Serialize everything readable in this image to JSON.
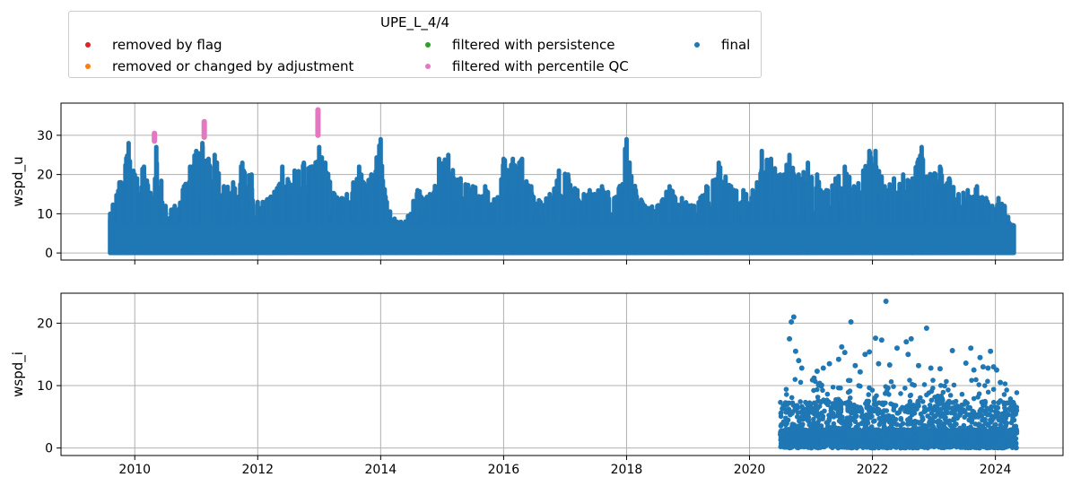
{
  "chart_data": {
    "type": "scatter",
    "legend": {
      "title": "UPE_L_4/4",
      "placement": "top, above plots",
      "entries": [
        {
          "label": "removed by flag",
          "color": "#d62728"
        },
        {
          "label": "removed or changed by adjustment",
          "color": "#ff7f0e"
        },
        {
          "label": "filtered with persistence",
          "color": "#2ca02c"
        },
        {
          "label": "filtered with percentile QC",
          "color": "#e377c2"
        },
        {
          "label": "final",
          "color": "#1f77b4"
        }
      ]
    },
    "x_ticks": [
      "2010",
      "2012",
      "2014",
      "2016",
      "2018",
      "2020",
      "2022",
      "2024"
    ],
    "xlim": [
      2008.8,
      2025.1
    ],
    "grid": true,
    "panels": [
      {
        "ylabel": "wspd_u",
        "ylim": [
          -1.8,
          38.2
        ],
        "y_ticks": [
          0,
          10,
          20,
          30
        ],
        "show_x_labels": false,
        "series": [
          {
            "name": "final",
            "color": "#1f77b4",
            "kind": "dense_column_envelope",
            "x": [
              2009.6,
              2009.75,
              2009.9,
              2010.0,
              2010.15,
              2010.3,
              2010.35,
              2010.5,
              2010.65,
              2010.8,
              2010.9,
              2011.0,
              2011.1,
              2011.2,
              2011.3,
              2011.45,
              2011.6,
              2011.75,
              2011.9,
              2012.0,
              2012.2,
              2012.4,
              2012.6,
              2012.75,
              2012.9,
              2013.0,
              2013.1,
              2013.25,
              2013.45,
              2013.65,
              2013.85,
              2014.0,
              2014.1,
              2014.25,
              2014.4,
              2014.6,
              2014.8,
              2014.95,
              2015.1,
              2015.3,
              2015.5,
              2015.7,
              2015.9,
              2016.0,
              2016.15,
              2016.3,
              2016.45,
              2016.6,
              2016.75,
              2016.9,
              2017.05,
              2017.2,
              2017.4,
              2017.6,
              2017.8,
              2018.0,
              2018.15,
              2018.3,
              2018.5,
              2018.7,
              2018.9,
              2019.1,
              2019.3,
              2019.5,
              2019.7,
              2019.9,
              2020.05,
              2020.2,
              2020.35,
              2020.5,
              2020.65,
              2020.8,
              2020.95,
              2021.1,
              2021.25,
              2021.4,
              2021.55,
              2021.7,
              2021.85,
              2021.95,
              2022.05,
              2022.2,
              2022.35,
              2022.5,
              2022.65,
              2022.8,
              2022.95,
              2023.1,
              2023.25,
              2023.4,
              2023.55,
              2023.7,
              2023.85,
              2023.95,
              2024.05,
              2024.15,
              2024.3
            ],
            "max": [
              10,
              18,
              28,
              20,
              22,
              14,
              27,
              12,
              12,
              17,
              22,
              26,
              28,
              24,
              25,
              17,
              18,
              23,
              20,
              13,
              14,
              22,
              21,
              23,
              22,
              27,
              23,
              15,
              15,
              22,
              20,
              29,
              13,
              8,
              8,
              16,
              15,
              24,
              25,
              19,
              17,
              17,
              14,
              24,
              24,
              24,
              17,
              13,
              15,
              21,
              20,
              16,
              16,
              17,
              14,
              29,
              16,
              12,
              12,
              17,
              14,
              12,
              17,
              23,
              17,
              16,
              16,
              26,
              24,
              20,
              25,
              20,
              23,
              20,
              16,
              19,
              22,
              17,
              21,
              26,
              26,
              17,
              19,
              20,
              19,
              27,
              20,
              22,
              19,
              15,
              16,
              17,
              14,
              12,
              14,
              12,
              7
            ]
          },
          {
            "name": "filtered with percentile QC",
            "color": "#e377c2",
            "kind": "vertical_segments",
            "segments": [
              {
                "x": 2010.32,
                "y0": 28.5,
                "y1": 30.5
              },
              {
                "x": 2011.13,
                "y0": 29.5,
                "y1": 33.5
              },
              {
                "x": 2012.98,
                "y0": 30.0,
                "y1": 36.5
              }
            ]
          }
        ]
      },
      {
        "ylabel": "wspd_i",
        "ylim": [
          -1.2,
          24.8
        ],
        "y_ticks": [
          0,
          10,
          20
        ],
        "show_x_labels": true,
        "series": [
          {
            "name": "final",
            "color": "#1f77b4",
            "kind": "scatter",
            "x_range": [
              2020.5,
              2024.35
            ],
            "points": [
              [
                2020.72,
                21.0
              ],
              [
                2020.68,
                20.2
              ],
              [
                2020.75,
                15.5
              ],
              [
                2020.65,
                17.5
              ],
              [
                2020.8,
                14.0
              ],
              [
                2020.85,
                12.8
              ],
              [
                2021.1,
                12.3
              ],
              [
                2021.2,
                12.8
              ],
              [
                2021.05,
                11.2
              ],
              [
                2021.3,
                13.5
              ],
              [
                2021.45,
                14.2
              ],
              [
                2021.5,
                16.2
              ],
              [
                2021.55,
                15.3
              ],
              [
                2021.65,
                20.2
              ],
              [
                2021.72,
                13.2
              ],
              [
                2021.8,
                12.2
              ],
              [
                2021.88,
                15.0
              ],
              [
                2021.95,
                15.4
              ],
              [
                2022.05,
                17.6
              ],
              [
                2022.15,
                17.3
              ],
              [
                2022.1,
                13.5
              ],
              [
                2022.22,
                23.5
              ],
              [
                2022.28,
                13.3
              ],
              [
                2022.4,
                16.0
              ],
              [
                2022.55,
                17.0
              ],
              [
                2022.63,
                17.5
              ],
              [
                2022.58,
                15.0
              ],
              [
                2022.75,
                13.2
              ],
              [
                2022.88,
                19.2
              ],
              [
                2022.95,
                12.8
              ],
              [
                2023.1,
                12.7
              ],
              [
                2023.3,
                15.6
              ],
              [
                2023.52,
                13.6
              ],
              [
                2023.6,
                16.0
              ],
              [
                2023.65,
                12.5
              ],
              [
                2023.75,
                14.5
              ],
              [
                2023.8,
                13.0
              ],
              [
                2023.88,
                12.8
              ],
              [
                2023.92,
                15.5
              ],
              [
                2023.97,
                13.0
              ],
              [
                2024.02,
                12.5
              ],
              [
                2024.08,
                10.5
              ]
            ]
          }
        ]
      }
    ]
  }
}
